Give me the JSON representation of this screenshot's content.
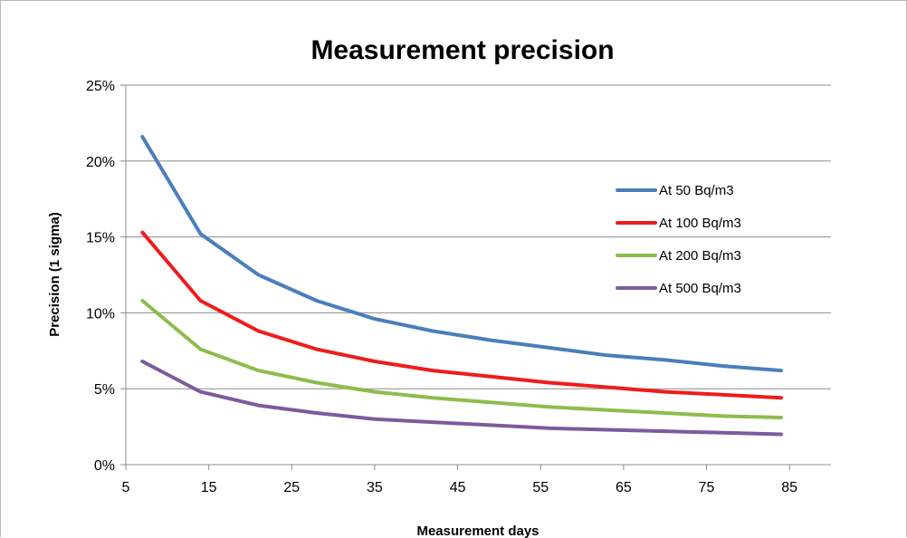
{
  "chart_data": {
    "type": "line",
    "title": "Measurement precision",
    "xlabel": "Measurement days",
    "ylabel": "Precision (1 sigma)",
    "xlim": [
      5,
      90
    ],
    "ylim": [
      0,
      0.25
    ],
    "x_ticks": [
      5,
      15,
      25,
      35,
      45,
      55,
      65,
      75,
      85
    ],
    "x_tick_labels": [
      "5",
      "15",
      "25",
      "35",
      "45",
      "55",
      "65",
      "75",
      "85"
    ],
    "y_ticks": [
      0,
      0.05,
      0.1,
      0.15,
      0.2,
      0.25
    ],
    "y_tick_labels": [
      "0%",
      "5%",
      "10%",
      "15%",
      "20%",
      "25%"
    ],
    "grid": "horizontal",
    "legend_position": "right",
    "x": [
      7,
      14,
      21,
      28,
      35,
      42,
      49,
      56,
      63,
      70,
      77,
      84
    ],
    "series": [
      {
        "name": "At 50 Bq/m3",
        "color": "#4a7ebb",
        "values": [
          0.216,
          0.152,
          0.125,
          0.108,
          0.096,
          0.088,
          0.082,
          0.077,
          0.072,
          0.069,
          0.065,
          0.062
        ]
      },
      {
        "name": "At 100 Bq/m3",
        "color": "#ee1c1c",
        "values": [
          0.153,
          0.108,
          0.088,
          0.076,
          0.068,
          0.062,
          0.058,
          0.054,
          0.051,
          0.048,
          0.046,
          0.044
        ]
      },
      {
        "name": "At 200 Bq/m3",
        "color": "#8cbd4c",
        "values": [
          0.108,
          0.076,
          0.062,
          0.054,
          0.048,
          0.044,
          0.041,
          0.038,
          0.036,
          0.034,
          0.032,
          0.031
        ]
      },
      {
        "name": "At 500 Bq/m3",
        "color": "#7d5a9e",
        "values": [
          0.068,
          0.048,
          0.039,
          0.034,
          0.03,
          0.028,
          0.026,
          0.024,
          0.023,
          0.022,
          0.021,
          0.02
        ]
      }
    ]
  }
}
